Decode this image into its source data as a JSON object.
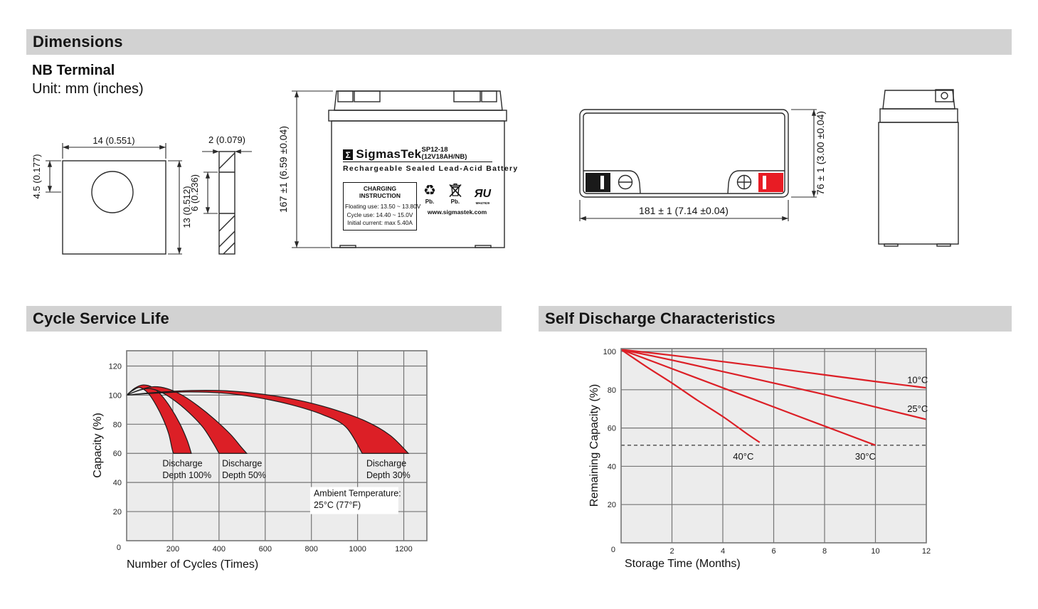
{
  "header": {
    "title": "Dimensions",
    "terminal_type": "NB Terminal",
    "unit_note": "Unit: mm (inches)"
  },
  "colors": {
    "section_bar": "#d2d2d2",
    "plot_bg": "#ececec",
    "grid": "#757575",
    "chart_red": "#dc1f26",
    "terminal_red": "#e81c24",
    "terminal_black": "#1a1a1a"
  },
  "terminal_front": {
    "width": "14 (0.551)",
    "height": "13 (0.512)",
    "hole_offset": "4.5 (0.177)"
  },
  "terminal_side": {
    "thickness": "2 (0.079)",
    "slot_height": "6 (0.236)"
  },
  "battery_front": {
    "height_dim": "167 ±1 (6.59 ±0.04)",
    "sigma": "Σ",
    "brand": "SigmasTek",
    "model": "SP12-18 (12V18AH/NB)",
    "tagline": "Rechargeable Sealed Lead-Acid Battery",
    "charging_title": "CHARGING INSTRUCTION",
    "charging_lines": [
      "Floating use: 13.50 ~ 13.80V",
      "Cycle use: 14.40 ~ 15.0V",
      "Initial current: max 5.40A"
    ],
    "recycle_glyph": "♻",
    "pb_recycle": "Pb.",
    "pb_bin": "Pb.",
    "ul_mark": "ЯU",
    "ul_code": "MH47929",
    "website": "www.sigmastek.com"
  },
  "battery_top": {
    "width_dim": "181 ± 1 (7.14 ±0.04)",
    "height_dim": "76 ± 1 (3.00 ±0.04)"
  },
  "section_cycle": {
    "title": "Cycle Service Life"
  },
  "section_discharge": {
    "title": "Self Discharge Characteristics"
  },
  "chart_data": [
    {
      "type": "area",
      "title": "Cycle Service Life",
      "xlabel": "Number of Cycles (Times)",
      "ylabel": "Capacity (%)",
      "xlim": [
        0,
        1300
      ],
      "ylim": [
        0,
        130.5
      ],
      "xticks": [
        200,
        400,
        600,
        800,
        1000,
        1200
      ],
      "yticks": [
        20,
        40,
        60,
        80,
        100,
        120
      ],
      "origin_label": "0",
      "grid": true,
      "legend_position": "none",
      "bands": [
        {
          "name": "Discharge Depth 100%",
          "upper": [
            [
              0,
              100
            ],
            [
              35,
              104.8
            ],
            [
              72,
              107
            ],
            [
              110,
              105.5
            ],
            [
              150,
              100
            ],
            [
              190,
              91.5
            ],
            [
              230,
              80.5
            ],
            [
              262,
              69
            ],
            [
              280,
              60
            ]
          ],
          "lower": [
            [
              0,
              100
            ],
            [
              28,
              103.3
            ],
            [
              58,
              105.2
            ],
            [
              95,
              101
            ],
            [
              128,
              93
            ],
            [
              158,
              83.5
            ],
            [
              182,
              73.5
            ],
            [
              197,
              63
            ],
            [
              203,
              60
            ]
          ]
        },
        {
          "name": "Discharge Depth 50%",
          "upper": [
            [
              0,
              100
            ],
            [
              55,
              103.5
            ],
            [
              115,
              105.8
            ],
            [
              175,
              104.5
            ],
            [
              240,
              100
            ],
            [
              310,
              92.5
            ],
            [
              380,
              83.5
            ],
            [
              450,
              73
            ],
            [
              495,
              64.5
            ],
            [
              520,
              60
            ]
          ],
          "lower": [
            [
              0,
              100
            ],
            [
              45,
              102.8
            ],
            [
              95,
              104.6
            ],
            [
              150,
              102
            ],
            [
              210,
              96
            ],
            [
              270,
              88
            ],
            [
              330,
              78
            ],
            [
              375,
              67
            ],
            [
              400,
              60
            ]
          ]
        },
        {
          "name": "Discharge Depth 30%",
          "upper": [
            [
              0,
              100
            ],
            [
              120,
              101.8
            ],
            [
              280,
              103.2
            ],
            [
              430,
              103
            ],
            [
              580,
              100.8
            ],
            [
              730,
              97
            ],
            [
              880,
              91
            ],
            [
              1030,
              82.5
            ],
            [
              1140,
              72.5
            ],
            [
              1220,
              60
            ]
          ],
          "lower": [
            [
              0,
              100
            ],
            [
              110,
              101.2
            ],
            [
              260,
              102.2
            ],
            [
              410,
              101.5
            ],
            [
              560,
              98.5
            ],
            [
              710,
              93.5
            ],
            [
              850,
              86.5
            ],
            [
              950,
              78
            ],
            [
              1020,
              60
            ]
          ]
        }
      ],
      "annotations": [
        {
          "lines": [
            "Discharge",
            "Depth 100%"
          ],
          "x": 155,
          "y": 51
        },
        {
          "lines": [
            "Discharge",
            "Depth 50%"
          ],
          "x": 413,
          "y": 51
        },
        {
          "lines": [
            "Discharge",
            "Depth 30%"
          ],
          "x": 1038,
          "y": 51
        },
        {
          "lines": [
            "Ambient Temperature:",
            "25°C (77°F)"
          ],
          "x": 810,
          "y": 30.5,
          "box": true
        }
      ]
    },
    {
      "type": "line",
      "title": "Self Discharge Characteristics",
      "xlabel": "Storage Time (Months)",
      "ylabel": "Remaining Capacity (%)",
      "xlim": [
        0,
        12
      ],
      "ylim": [
        0,
        101.5
      ],
      "xticks": [
        2,
        4,
        6,
        8,
        10,
        12
      ],
      "yticks": [
        20,
        40,
        60,
        80,
        100
      ],
      "origin_label": "0",
      "grid": true,
      "legend_position": "inline-labels",
      "dashed_y": 51,
      "series": [
        {
          "name": "10°C",
          "points": [
            [
              0,
              101
            ],
            [
              2,
              98
            ],
            [
              4,
              94.7
            ],
            [
              6,
              91.3
            ],
            [
              8,
              87.8
            ],
            [
              10,
              84.3
            ],
            [
              12,
              81
            ]
          ]
        },
        {
          "name": "25°C",
          "points": [
            [
              0,
              101
            ],
            [
              2,
              95.5
            ],
            [
              4,
              89.5
            ],
            [
              6,
              83.5
            ],
            [
              8,
              77.5
            ],
            [
              10,
              71
            ],
            [
              12,
              64.5
            ]
          ]
        },
        {
          "name": "30°C",
          "points": [
            [
              0,
              101
            ],
            [
              2,
              91
            ],
            [
              4,
              81
            ],
            [
              6,
              71
            ],
            [
              8,
              61
            ],
            [
              10,
              51
            ]
          ]
        },
        {
          "name": "40°C",
          "points": [
            [
              0,
              101
            ],
            [
              1,
              92
            ],
            [
              2,
              83.5
            ],
            [
              3,
              74.5
            ],
            [
              4,
              66
            ],
            [
              5,
              56.5
            ],
            [
              5.45,
              52.5
            ]
          ]
        }
      ],
      "series_labels": [
        {
          "text": "10°C",
          "x": 11.25,
          "y": 83.5
        },
        {
          "text": "25°C",
          "x": 11.25,
          "y": 68.5
        },
        {
          "text": "40°C",
          "x": 4.4,
          "y": 43.5
        },
        {
          "text": "30°C",
          "x": 9.2,
          "y": 43.5
        }
      ]
    }
  ]
}
